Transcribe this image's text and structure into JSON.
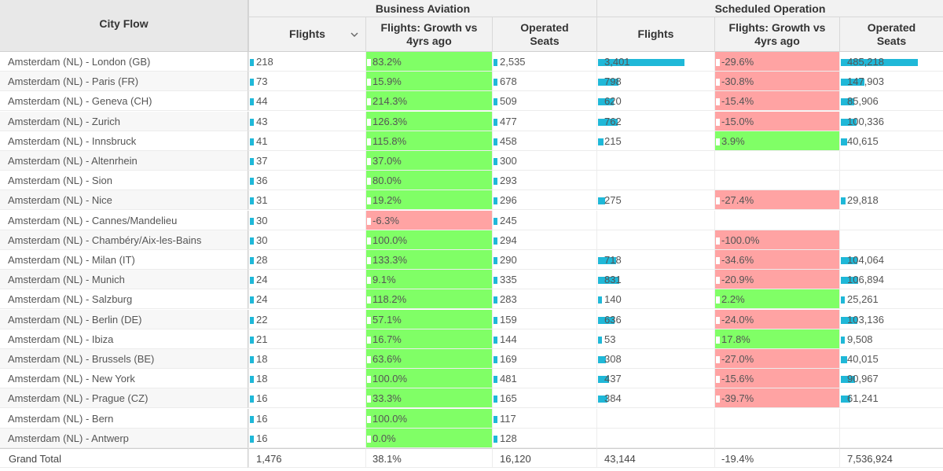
{
  "headers": {
    "city_flow": "City Flow",
    "business_aviation": "Business Aviation",
    "scheduled_operation": "Scheduled Operation",
    "flights": "Flights",
    "growth_line1": "Flights: Growth vs",
    "growth_line2": "4yrs ago",
    "seats_line1": "Operated",
    "seats_line2": "Seats"
  },
  "colors": {
    "positive": "#80ff66",
    "negative": "#ffa3a3",
    "bar": "#1fb8d8"
  },
  "rows": [
    {
      "city": "Amsterdam (NL) - London (GB)",
      "ba_flights": "218",
      "ba_growth": "83.2%",
      "ba_seats": "2,535",
      "so_flights": "3,401",
      "so_growth": "-29.6%",
      "so_seats": "485,218"
    },
    {
      "city": "Amsterdam (NL) - Paris (FR)",
      "ba_flights": "73",
      "ba_growth": "15.9%",
      "ba_seats": "678",
      "so_flights": "798",
      "so_growth": "-30.8%",
      "so_seats": "147,903"
    },
    {
      "city": "Amsterdam (NL) - Geneva (CH)",
      "ba_flights": "44",
      "ba_growth": "214.3%",
      "ba_seats": "509",
      "so_flights": "620",
      "so_growth": "-15.4%",
      "so_seats": "85,906"
    },
    {
      "city": "Amsterdam (NL) - Zurich",
      "ba_flights": "43",
      "ba_growth": "126.3%",
      "ba_seats": "477",
      "so_flights": "762",
      "so_growth": "-15.0%",
      "so_seats": "100,336"
    },
    {
      "city": "Amsterdam (NL) - Innsbruck",
      "ba_flights": "41",
      "ba_growth": "115.8%",
      "ba_seats": "458",
      "so_flights": "215",
      "so_growth": "3.9%",
      "so_seats": "40,615"
    },
    {
      "city": "Amsterdam (NL) - Altenrhein",
      "ba_flights": "37",
      "ba_growth": "37.0%",
      "ba_seats": "300",
      "so_flights": "",
      "so_growth": "",
      "so_seats": ""
    },
    {
      "city": "Amsterdam (NL) - Sion",
      "ba_flights": "36",
      "ba_growth": "80.0%",
      "ba_seats": "293",
      "so_flights": "",
      "so_growth": "",
      "so_seats": ""
    },
    {
      "city": "Amsterdam (NL) - Nice",
      "ba_flights": "31",
      "ba_growth": "19.2%",
      "ba_seats": "296",
      "so_flights": "275",
      "so_growth": "-27.4%",
      "so_seats": "29,818"
    },
    {
      "city": "Amsterdam (NL) - Cannes/Mandelieu",
      "ba_flights": "30",
      "ba_growth": "-6.3%",
      "ba_seats": "245",
      "so_flights": "",
      "so_growth": "",
      "so_seats": ""
    },
    {
      "city": "Amsterdam (NL) - Chambéry/Aix-les-Bains",
      "ba_flights": "30",
      "ba_growth": "100.0%",
      "ba_seats": "294",
      "so_flights": "",
      "so_growth": "-100.0%",
      "so_seats": ""
    },
    {
      "city": "Amsterdam (NL) - Milan (IT)",
      "ba_flights": "28",
      "ba_growth": "133.3%",
      "ba_seats": "290",
      "so_flights": "718",
      "so_growth": "-34.6%",
      "so_seats": "104,064"
    },
    {
      "city": "Amsterdam (NL) - Munich",
      "ba_flights": "24",
      "ba_growth": "9.1%",
      "ba_seats": "335",
      "so_flights": "831",
      "so_growth": "-20.9%",
      "so_seats": "106,894"
    },
    {
      "city": "Amsterdam (NL) - Salzburg",
      "ba_flights": "24",
      "ba_growth": "118.2%",
      "ba_seats": "283",
      "so_flights": "140",
      "so_growth": "2.2%",
      "so_seats": "25,261"
    },
    {
      "city": "Amsterdam (NL) - Berlin (DE)",
      "ba_flights": "22",
      "ba_growth": "57.1%",
      "ba_seats": "159",
      "so_flights": "636",
      "so_growth": "-24.0%",
      "so_seats": "103,136"
    },
    {
      "city": "Amsterdam (NL) - Ibiza",
      "ba_flights": "21",
      "ba_growth": "16.7%",
      "ba_seats": "144",
      "so_flights": "53",
      "so_growth": "17.8%",
      "so_seats": "9,508"
    },
    {
      "city": "Amsterdam (NL) - Brussels (BE)",
      "ba_flights": "18",
      "ba_growth": "63.6%",
      "ba_seats": "169",
      "so_flights": "308",
      "so_growth": "-27.0%",
      "so_seats": "40,015"
    },
    {
      "city": "Amsterdam (NL) - New York",
      "ba_flights": "18",
      "ba_growth": "100.0%",
      "ba_seats": "481",
      "so_flights": "437",
      "so_growth": "-15.6%",
      "so_seats": "90,967"
    },
    {
      "city": "Amsterdam (NL) - Prague (CZ)",
      "ba_flights": "16",
      "ba_growth": "33.3%",
      "ba_seats": "165",
      "so_flights": "384",
      "so_growth": "-39.7%",
      "so_seats": "61,241"
    },
    {
      "city": "Amsterdam (NL) - Bern",
      "ba_flights": "16",
      "ba_growth": "100.0%",
      "ba_seats": "117",
      "so_flights": "",
      "so_growth": "",
      "so_seats": ""
    },
    {
      "city": "Amsterdam (NL) - Antwerp",
      "ba_flights": "16",
      "ba_growth": "0.0%",
      "ba_seats": "128",
      "so_flights": "",
      "so_growth": "",
      "so_seats": ""
    }
  ],
  "grand_total": {
    "label": "Grand Total",
    "ba_flights": "1,476",
    "ba_growth": "38.1%",
    "ba_seats": "16,120",
    "so_flights": "43,144",
    "so_growth": "-19.4%",
    "so_seats": "7,536,924"
  }
}
